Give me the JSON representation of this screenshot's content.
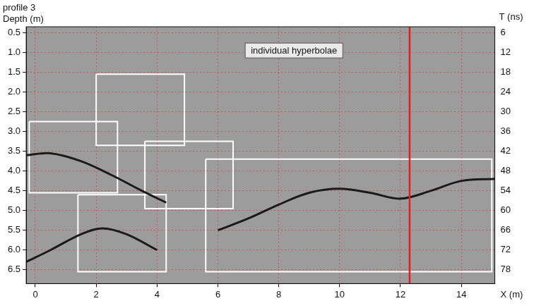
{
  "chart_data": {
    "type": "scatter",
    "title": "profile 3",
    "y_label": "Depth (m)",
    "y2_label": "T (ns)",
    "x_label": "X (m)",
    "xlim": [
      -0.3,
      15.1
    ],
    "xticks": [
      0,
      2,
      4,
      6,
      8,
      10,
      12,
      14
    ],
    "ylim": [
      0.35,
      6.85
    ],
    "yticks": [
      0.5,
      {
        "value": 1,
        "label": "1.0"
      },
      1.5,
      {
        "value": 2,
        "label": "2.0"
      },
      2.5,
      {
        "value": 3,
        "label": "3.0"
      },
      3.5,
      {
        "value": 4,
        "label": "4.0"
      },
      4.5,
      {
        "value": 5,
        "label": "5.0"
      },
      5.5,
      {
        "value": 6,
        "label": "6.0"
      },
      6.5
    ],
    "y2lim": [
      4.2,
      82.2
    ],
    "y2ticks": [
      6,
      12,
      18,
      24,
      30,
      36,
      42,
      48,
      54,
      60,
      66,
      72,
      78
    ],
    "grid": true,
    "series": [
      {
        "color": "#1a1a1a",
        "x": [
          -0.3,
          0.5,
          1.5,
          2.5,
          3.5,
          4.3
        ],
        "values": [
          3.6,
          3.55,
          3.75,
          4.1,
          4.5,
          4.8
        ]
      },
      {
        "color": "#1a1a1a",
        "x": [
          -0.3,
          0.5,
          1.5,
          2.2,
          3.0,
          4.0
        ],
        "values": [
          6.3,
          6.0,
          5.6,
          5.45,
          5.6,
          6.0
        ]
      },
      {
        "color": "#1a1a1a",
        "x": [
          6,
          7,
          8,
          9,
          10,
          11,
          12,
          13,
          14,
          15.1
        ],
        "values": [
          5.5,
          5.2,
          4.85,
          4.55,
          4.45,
          4.55,
          4.7,
          4.5,
          4.25,
          4.2
        ]
      }
    ],
    "regions": [
      {
        "color": "#ffffff",
        "x": [
          2.0,
          4.9
        ],
        "y": [
          1.55,
          3.35
        ]
      },
      {
        "color": "#ffffff",
        "x": [
          -0.2,
          2.7
        ],
        "y": [
          2.75,
          4.55
        ]
      },
      {
        "color": "#ffffff",
        "x": [
          3.6,
          6.5
        ],
        "y": [
          3.25,
          4.95
        ]
      },
      {
        "color": "#ffffff",
        "x": [
          1.4,
          4.3
        ],
        "y": [
          4.6,
          6.55
        ]
      },
      {
        "color": "#ffffff",
        "x": [
          5.6,
          15.0
        ],
        "y": [
          3.7,
          6.55
        ]
      }
    ],
    "vlines": [
      {
        "x": 12.3,
        "color": "#e02020"
      }
    ],
    "annotations": [
      {
        "text": "individual hyperbolae",
        "x": 8.5,
        "y": 0.95
      }
    ]
  }
}
